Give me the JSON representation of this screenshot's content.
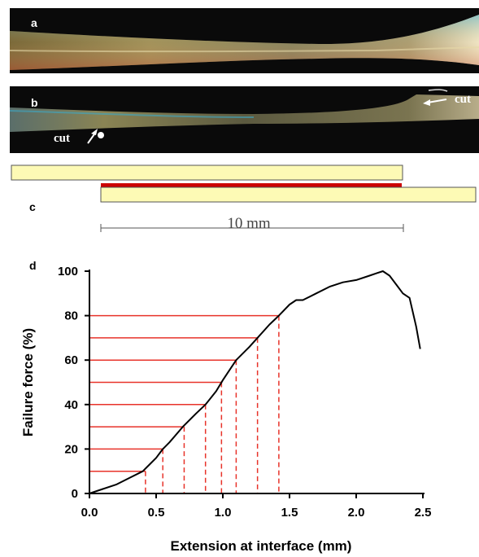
{
  "panels": {
    "a": {
      "letter": "a"
    },
    "b": {
      "letter": "b",
      "cut_left": "cut",
      "cut_right": "cut"
    },
    "c": {
      "letter": "c",
      "scale_label": "10 mm"
    },
    "d": {
      "letter": "d"
    }
  },
  "colors": {
    "photo_background": "#0a0a0a",
    "strip_fill": "#fdfab5",
    "overlap_red": "#cc0000",
    "guide_red": "#e8332a",
    "curve": "#000000"
  },
  "chart_data": {
    "type": "line",
    "title": "",
    "xlabel": "Extension at interface (mm)",
    "ylabel": "Failure force (%)",
    "xlim": [
      0.0,
      2.5
    ],
    "ylim": [
      0,
      100
    ],
    "x_ticks": [
      "0.0",
      "0.5",
      "1.0",
      "1.5",
      "2.0",
      "2.5"
    ],
    "y_ticks": [
      "0",
      "20",
      "40",
      "60",
      "80",
      "100"
    ],
    "grid": false,
    "series": [
      {
        "x": [
          0.0,
          0.1,
          0.2,
          0.3,
          0.4,
          0.45,
          0.5,
          0.55,
          0.6,
          0.7,
          0.8,
          0.87,
          0.95,
          1.0,
          1.1,
          1.2,
          1.26,
          1.35,
          1.42,
          1.5,
          1.55,
          1.6,
          1.7,
          1.8,
          1.9,
          2.0,
          2.1,
          2.15,
          2.2,
          2.25,
          2.3,
          2.35,
          2.4,
          2.45,
          2.48
        ],
        "y": [
          0,
          2,
          4,
          7,
          10,
          13,
          16,
          20,
          23,
          30,
          36,
          40,
          46,
          51,
          60,
          66,
          70,
          76,
          80,
          85,
          87,
          87,
          90,
          93,
          95,
          96,
          98,
          99,
          100,
          98,
          94,
          90,
          88,
          75,
          65
        ]
      }
    ],
    "guides": [
      {
        "x": 0.42,
        "y": 10
      },
      {
        "x": 0.55,
        "y": 20
      },
      {
        "x": 0.71,
        "y": 30
      },
      {
        "x": 0.87,
        "y": 40
      },
      {
        "x": 0.99,
        "y": 50
      },
      {
        "x": 1.1,
        "y": 60
      },
      {
        "x": 1.26,
        "y": 70
      },
      {
        "x": 1.42,
        "y": 80
      }
    ]
  }
}
